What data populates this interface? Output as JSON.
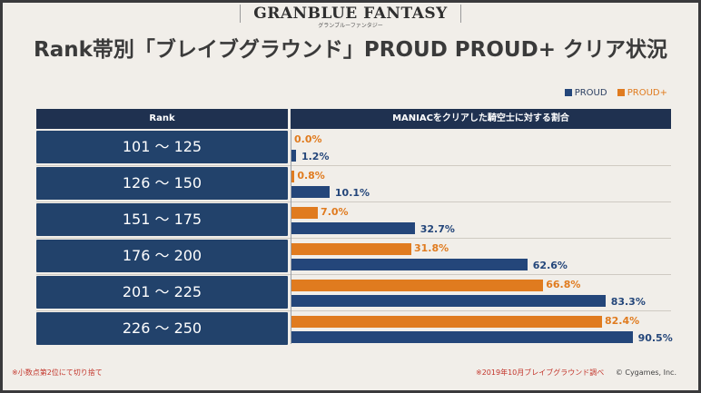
{
  "logo": {
    "main": "GRANBLUE FANTASY",
    "sub": "グランブルーファンタジー"
  },
  "title": "Rank帯別「ブレイブグラウンド」PROUD PROUD+ クリア状況",
  "legend": [
    {
      "label": "PROUD",
      "color": "#24467a"
    },
    {
      "label": "PROUD+",
      "color": "#e07b1f"
    }
  ],
  "headers": {
    "rank": "Rank",
    "maniac": "MANIACをクリアした騎空士に対する割合"
  },
  "chart_data": {
    "type": "bar",
    "orientation": "horizontal",
    "categories": [
      "101 ～ 125",
      "126 ～ 150",
      "151 ～ 175",
      "176 ～ 200",
      "201 ～ 225",
      "226 ～ 250"
    ],
    "series": [
      {
        "name": "PROUD+",
        "values": [
          0.0,
          0.8,
          7.0,
          31.8,
          66.8,
          82.4
        ],
        "labels": [
          "0.0%",
          "0.8%",
          "7.0%",
          "31.8%",
          "66.8%",
          "82.4%"
        ],
        "color": "#e07b1f"
      },
      {
        "name": "PROUD",
        "values": [
          1.2,
          10.1,
          32.7,
          62.6,
          83.3,
          90.5
        ],
        "labels": [
          "1.2%",
          "10.1%",
          "32.7%",
          "62.6%",
          "83.3%",
          "90.5%"
        ],
        "color": "#24467a"
      }
    ],
    "xlim": [
      0,
      100
    ]
  },
  "footnotes": {
    "left": "※小数点第2位にて切り捨て",
    "right": "※2019年10月ブレイブグラウンド調べ",
    "copyright": "© Cygames, Inc."
  }
}
